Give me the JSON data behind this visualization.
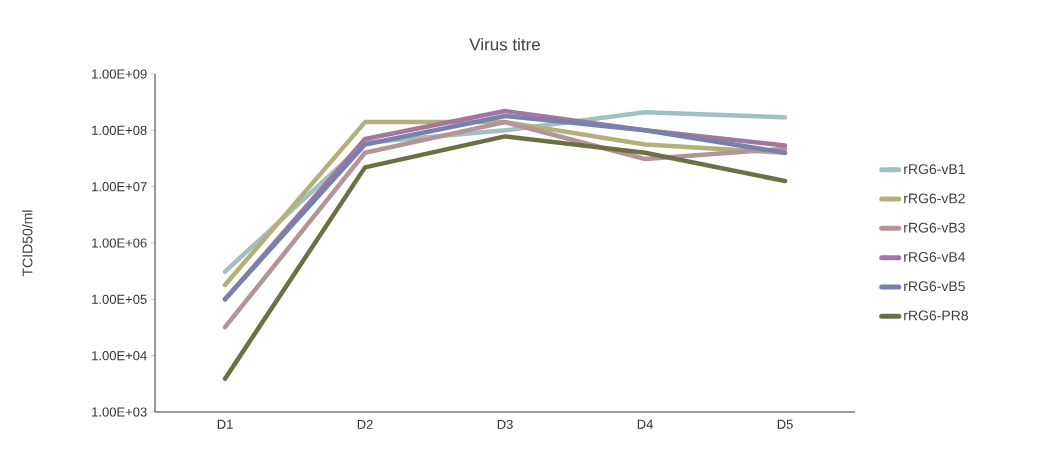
{
  "chart_data": {
    "type": "line",
    "title": "Virus titre",
    "ylabel": "TCID50/ml",
    "log": "y",
    "legend": "right",
    "grid": false,
    "marker": "none",
    "line_style": "solid",
    "categories": [
      "D1",
      "D2",
      "D3",
      "D4",
      "D5"
    ],
    "ylim": [
      1000,
      1000000000
    ],
    "yticks": [
      {
        "value": 1000,
        "label": "1.00E+03"
      },
      {
        "value": 10000,
        "label": "1.00E+04"
      },
      {
        "value": 100000,
        "label": "1.00E+05"
      },
      {
        "value": 1000000,
        "label": "1.00E+06"
      },
      {
        "value": 10000000,
        "label": "1.00E+07"
      },
      {
        "value": 100000000,
        "label": "1.00E+08"
      },
      {
        "value": 1000000000,
        "label": "1.00E+09"
      }
    ],
    "series": [
      {
        "name": "rRG6-vB1",
        "color": "#a3bfc0",
        "values": [
          310000,
          60000000,
          100000000,
          210000000,
          170000000
        ]
      },
      {
        "name": "rRG6-vB2",
        "color": "#b3b07c",
        "values": [
          180000,
          140000000,
          140000000,
          56000000,
          40000000
        ]
      },
      {
        "name": "rRG6-vB3",
        "color": "#b39598",
        "values": [
          32000,
          40000000,
          140000000,
          31000000,
          47000000
        ]
      },
      {
        "name": "rRG6-vB4",
        "color": "#a2769f",
        "values": [
          100000,
          70000000,
          220000000,
          100000000,
          54000000
        ]
      },
      {
        "name": "rRG6-vB5",
        "color": "#7880ad",
        "values": [
          100000,
          56000000,
          180000000,
          100000000,
          40000000
        ]
      },
      {
        "name": "rRG6-PR8",
        "color": "#6f6f45",
        "values": [
          3900,
          22000000,
          78000000,
          40000000,
          12600000
        ]
      }
    ]
  }
}
